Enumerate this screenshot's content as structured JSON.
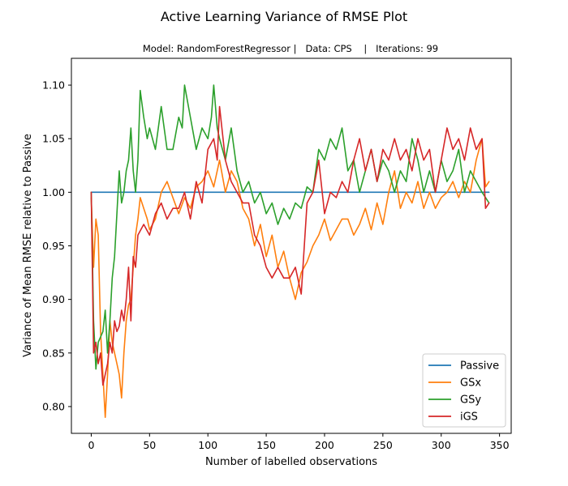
{
  "chart_data": {
    "type": "line",
    "title": "Active Learning Variance of RMSE Plot",
    "subtitle": "Model: RandomForestRegressor |   Data: CPS    |   Iterations: 99",
    "xlabel": "Number of labelled observations",
    "ylabel": "Variance of Mean RMSE relative to Passive",
    "xlim": [
      -17,
      360
    ],
    "ylim": [
      0.775,
      1.125
    ],
    "xticks": [
      0,
      50,
      100,
      150,
      200,
      250,
      300,
      350
    ],
    "yticks": [
      0.8,
      0.85,
      0.9,
      0.95,
      1.0,
      1.05,
      1.1
    ],
    "ytick_labels": [
      "0.80",
      "0.85",
      "0.90",
      "0.95",
      "1.00",
      "1.05",
      "1.10"
    ],
    "grid": false,
    "legend_position": "lower-right",
    "series": [
      {
        "name": "Passive",
        "color": "#1f77b4",
        "x": [
          0,
          341
        ],
        "y": [
          1.0,
          1.0
        ]
      },
      {
        "name": "GSx",
        "color": "#ff7f0e",
        "x": [
          0,
          2,
          4,
          6,
          8,
          10,
          12,
          14,
          16,
          18,
          20,
          22,
          24,
          26,
          28,
          30,
          32,
          34,
          36,
          38,
          40,
          42,
          45,
          48,
          50,
          55,
          60,
          65,
          70,
          75,
          80,
          85,
          90,
          95,
          100,
          105,
          110,
          115,
          120,
          125,
          130,
          135,
          140,
          145,
          150,
          155,
          160,
          165,
          170,
          175,
          180,
          185,
          190,
          195,
          200,
          205,
          210,
          215,
          220,
          225,
          230,
          235,
          240,
          245,
          250,
          255,
          260,
          265,
          270,
          275,
          280,
          285,
          290,
          295,
          300,
          305,
          310,
          315,
          320,
          325,
          330,
          335,
          338,
          341
        ],
        "y": [
          0.995,
          0.93,
          0.975,
          0.96,
          0.87,
          0.83,
          0.79,
          0.83,
          0.88,
          0.86,
          0.85,
          0.84,
          0.83,
          0.808,
          0.85,
          0.88,
          0.895,
          0.9,
          0.93,
          0.96,
          0.975,
          0.995,
          0.985,
          0.975,
          0.965,
          0.975,
          1.0,
          1.01,
          0.995,
          0.98,
          0.995,
          0.985,
          1.005,
          1.01,
          1.02,
          1.005,
          1.03,
          1.0,
          1.02,
          1.01,
          0.985,
          0.975,
          0.95,
          0.97,
          0.94,
          0.96,
          0.93,
          0.945,
          0.92,
          0.9,
          0.925,
          0.935,
          0.95,
          0.96,
          0.975,
          0.955,
          0.965,
          0.975,
          0.975,
          0.96,
          0.97,
          0.985,
          0.965,
          0.99,
          0.97,
          1.0,
          1.02,
          0.985,
          1.0,
          0.99,
          1.01,
          0.985,
          1.0,
          0.985,
          0.995,
          1.0,
          1.01,
          0.995,
          1.01,
          1.0,
          1.03,
          1.05,
          1.005,
          1.01
        ]
      },
      {
        "name": "GSy",
        "color": "#2ca02c",
        "x": [
          0,
          2,
          4,
          6,
          8,
          10,
          12,
          14,
          16,
          18,
          20,
          22,
          24,
          26,
          28,
          30,
          32,
          34,
          36,
          38,
          40,
          42,
          45,
          48,
          50,
          55,
          60,
          65,
          70,
          75,
          78,
          80,
          85,
          90,
          95,
          100,
          103,
          105,
          108,
          110,
          115,
          120,
          125,
          130,
          135,
          140,
          145,
          150,
          155,
          160,
          165,
          170,
          175,
          180,
          185,
          190,
          195,
          200,
          205,
          210,
          215,
          220,
          225,
          230,
          235,
          240,
          245,
          250,
          255,
          260,
          265,
          270,
          275,
          280,
          285,
          290,
          295,
          300,
          305,
          310,
          315,
          320,
          325,
          330,
          335,
          338,
          341
        ],
        "y": [
          1.0,
          0.88,
          0.835,
          0.86,
          0.865,
          0.87,
          0.89,
          0.85,
          0.88,
          0.92,
          0.94,
          0.98,
          1.02,
          0.99,
          1.0,
          1.02,
          1.03,
          1.06,
          1.02,
          1.0,
          1.03,
          1.095,
          1.07,
          1.05,
          1.06,
          1.04,
          1.08,
          1.04,
          1.04,
          1.07,
          1.06,
          1.1,
          1.07,
          1.04,
          1.06,
          1.05,
          1.07,
          1.1,
          1.06,
          1.05,
          1.03,
          1.06,
          1.02,
          1.0,
          1.01,
          0.99,
          1.0,
          0.98,
          0.99,
          0.97,
          0.985,
          0.975,
          0.99,
          0.985,
          1.005,
          1.0,
          1.04,
          1.03,
          1.05,
          1.04,
          1.06,
          1.02,
          1.03,
          1.0,
          1.02,
          1.04,
          1.01,
          1.03,
          1.02,
          1.0,
          1.02,
          1.01,
          1.05,
          1.03,
          1.0,
          1.02,
          1.0,
          1.03,
          1.01,
          1.02,
          1.04,
          1.0,
          1.02,
          1.01,
          1.0,
          0.995,
          0.99
        ]
      },
      {
        "name": "iGS",
        "color": "#d62728",
        "x": [
          0,
          2,
          4,
          6,
          8,
          10,
          12,
          14,
          16,
          18,
          20,
          22,
          24,
          26,
          28,
          30,
          32,
          34,
          36,
          38,
          40,
          45,
          50,
          55,
          60,
          65,
          70,
          75,
          80,
          85,
          90,
          95,
          100,
          105,
          108,
          110,
          115,
          120,
          125,
          130,
          135,
          140,
          145,
          150,
          155,
          160,
          165,
          170,
          175,
          180,
          185,
          190,
          195,
          200,
          205,
          210,
          215,
          220,
          225,
          230,
          235,
          240,
          245,
          250,
          255,
          260,
          265,
          270,
          275,
          280,
          285,
          290,
          295,
          300,
          305,
          310,
          315,
          320,
          325,
          330,
          335,
          338,
          341
        ],
        "y": [
          1.0,
          0.85,
          0.86,
          0.84,
          0.85,
          0.82,
          0.83,
          0.84,
          0.86,
          0.85,
          0.88,
          0.87,
          0.875,
          0.89,
          0.88,
          0.9,
          0.93,
          0.88,
          0.94,
          0.93,
          0.96,
          0.97,
          0.96,
          0.98,
          0.99,
          0.975,
          0.985,
          0.985,
          1.0,
          0.975,
          1.01,
          0.99,
          1.04,
          1.05,
          1.03,
          1.08,
          1.03,
          1.01,
          1.0,
          0.99,
          0.99,
          0.96,
          0.95,
          0.93,
          0.92,
          0.93,
          0.92,
          0.92,
          0.93,
          0.905,
          0.99,
          1.0,
          1.03,
          0.98,
          1.0,
          0.995,
          1.01,
          1.0,
          1.03,
          1.05,
          1.02,
          1.04,
          1.01,
          1.04,
          1.03,
          1.05,
          1.03,
          1.04,
          1.02,
          1.05,
          1.03,
          1.04,
          1.0,
          1.03,
          1.06,
          1.04,
          1.05,
          1.03,
          1.06,
          1.04,
          1.05,
          0.985,
          0.99
        ]
      }
    ]
  }
}
